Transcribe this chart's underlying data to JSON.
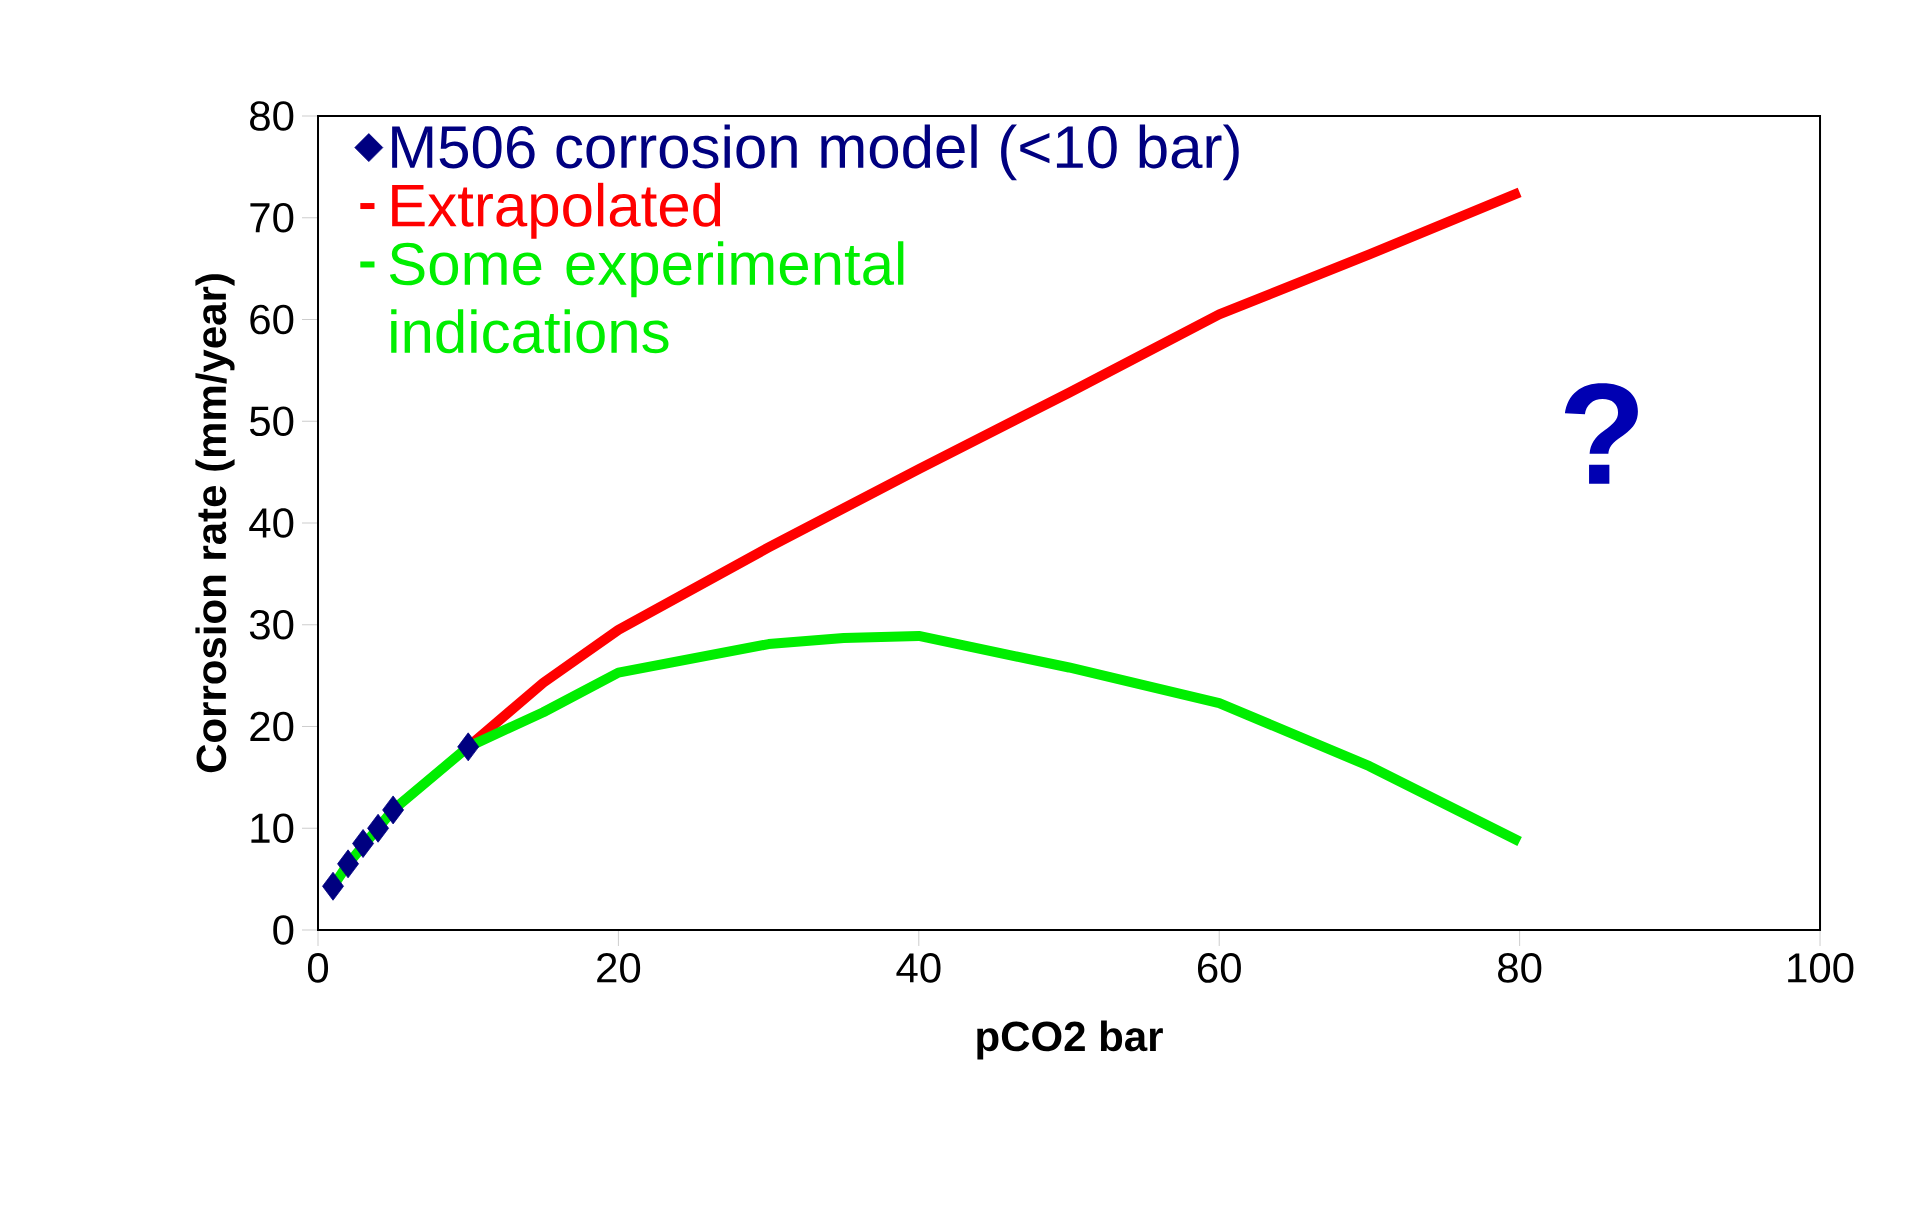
{
  "chart_data": {
    "type": "line",
    "xlabel": "pCO2 bar",
    "ylabel": "Corrosion rate (mm/year)",
    "xlim": [
      0,
      100
    ],
    "xticks": [
      0,
      20,
      40,
      60,
      80,
      100
    ],
    "ylim": [
      0,
      80
    ],
    "yticks": [
      0,
      10,
      20,
      30,
      40,
      50,
      60,
      70,
      80
    ],
    "grid": false,
    "legend": "top left",
    "line_style": "solid",
    "annotations": [
      "?"
    ],
    "series": [
      {
        "name": "M506 corrosion model (<10 bar)",
        "type": "scatter",
        "marker": "diamond",
        "color": "#000080",
        "x": [
          1,
          2,
          3,
          4,
          5,
          10
        ],
        "values": [
          4.3,
          6.5,
          8.5,
          10,
          11.8,
          18
        ]
      },
      {
        "name": "Extrapolated",
        "color": "#ff0000",
        "x": [
          10,
          15,
          20,
          30,
          40,
          50,
          60,
          70,
          80
        ],
        "values": [
          18,
          24.3,
          29.5,
          37.6,
          45.3,
          52.8,
          60.5,
          66.4,
          72.5
        ]
      },
      {
        "name": "Some experimental indications",
        "color": "#00ee00",
        "x": [
          1,
          2,
          5,
          10,
          15,
          20,
          30,
          35,
          40,
          50,
          60,
          70,
          80
        ],
        "values": [
          4.3,
          6.5,
          11.8,
          18,
          21.4,
          25.3,
          28.1,
          28.7,
          28.9,
          25.8,
          22.3,
          16.1,
          8.7
        ]
      }
    ]
  }
}
